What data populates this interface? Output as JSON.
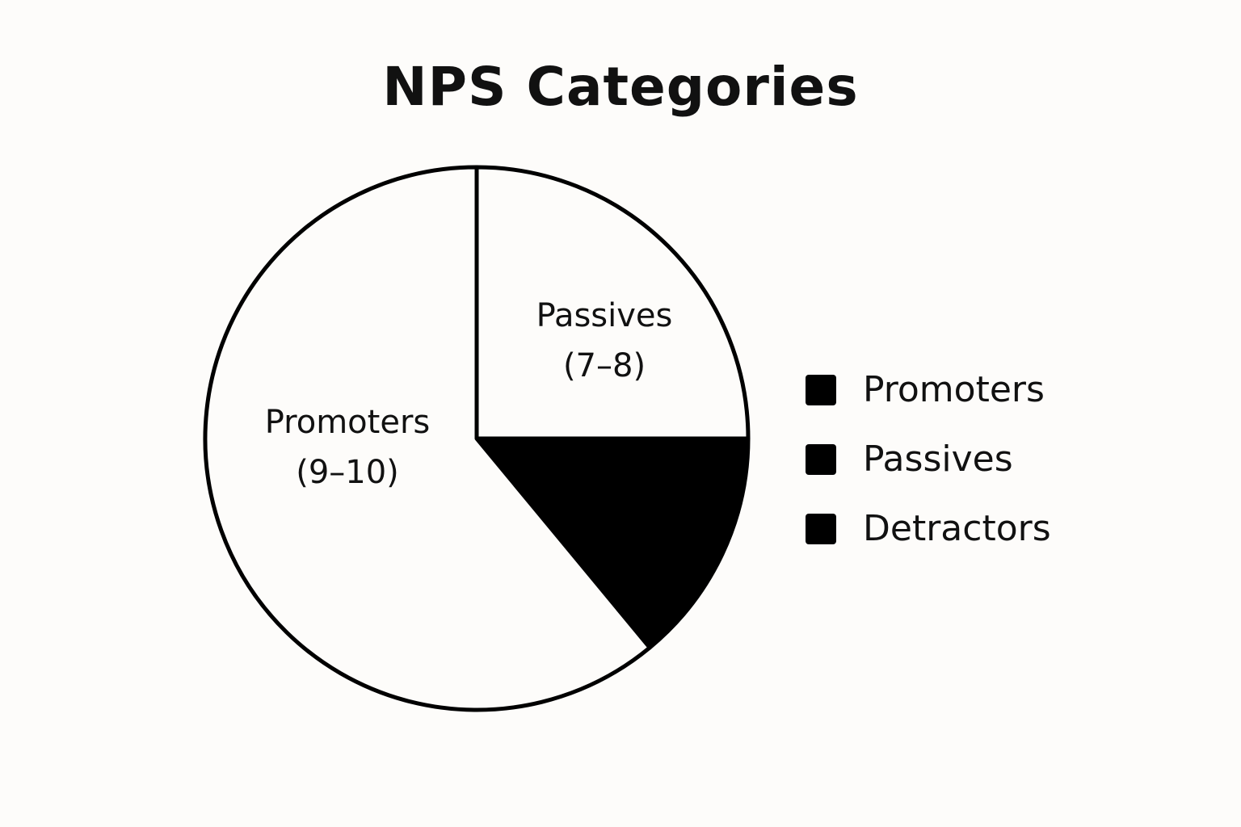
{
  "chart_data": {
    "type": "pie",
    "title": "NPS Categories",
    "slices": [
      {
        "name": "Passives",
        "label_lines": [
          "Passives",
          "(7–8)"
        ],
        "value": 25,
        "fill": "#fdfcfa"
      },
      {
        "name": "Detractors",
        "label_lines": [],
        "value": 14,
        "fill": "#000000"
      },
      {
        "name": "Promoters",
        "label_lines": [
          "Promoters",
          "(9–10)"
        ],
        "value": 61,
        "fill": "#fdfcfa"
      }
    ],
    "legend": {
      "placement": "right",
      "entries": [
        {
          "label": "Promoters",
          "swatch": "#000000"
        },
        {
          "label": "Passives",
          "swatch": "#000000"
        },
        {
          "label": "Detractors",
          "swatch": "#000000"
        }
      ]
    },
    "stroke_color": "#000000"
  }
}
